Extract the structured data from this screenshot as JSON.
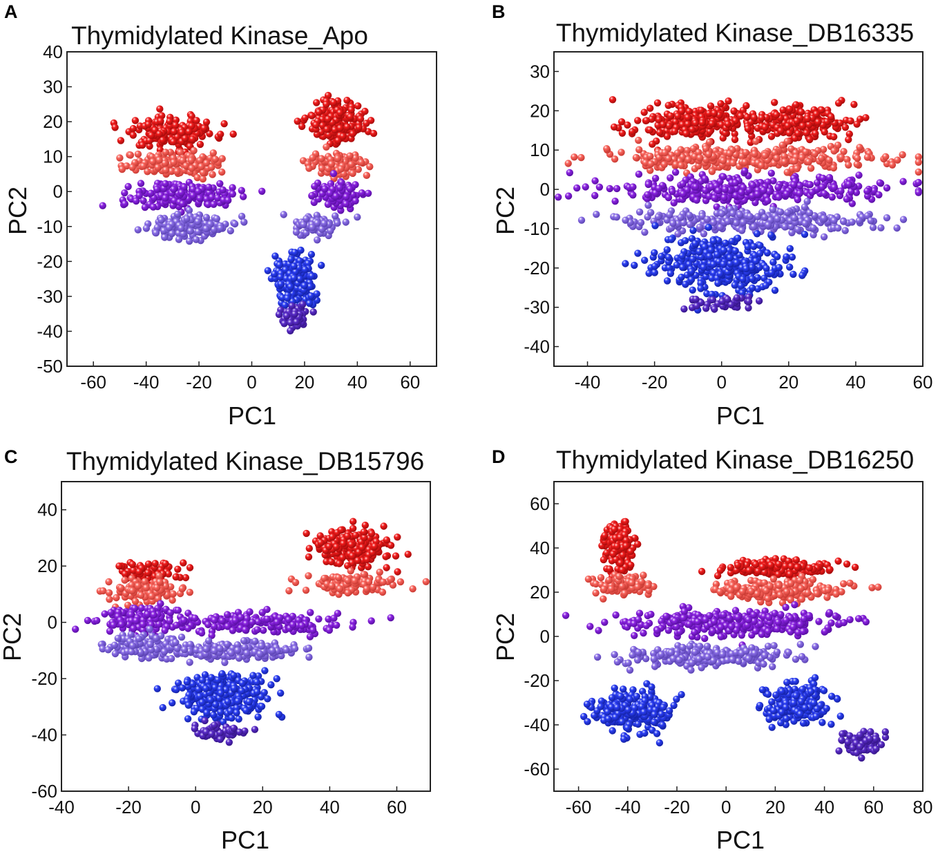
{
  "figure": {
    "panel_count": 4
  },
  "colors": {
    "red": "#f01c1c",
    "salmon": "#f8645c",
    "purple": "#8a23e0",
    "lavender": "#8a6ee6",
    "blue": "#2a3df2",
    "violet": "#5a2cc8"
  },
  "chart_data": [
    {
      "panel_label": "A",
      "type": "scatter",
      "title": "Thymidylated Kinase_Apo",
      "xlabel": "PC1",
      "ylabel": "PC2",
      "xlim": [
        -70,
        70
      ],
      "ylim": [
        -50,
        40
      ],
      "xticks": [
        -60,
        -40,
        -20,
        0,
        20,
        40,
        60
      ],
      "yticks": [
        40,
        30,
        20,
        10,
        0,
        -10,
        -20,
        -30,
        -40,
        -50
      ],
      "color_bands": [
        "red",
        "salmon",
        "purple",
        "lavender",
        "blue",
        "violet"
      ],
      "clusters": [
        {
          "name": "left-red",
          "color": "red",
          "x_center": -30,
          "y_center": 17,
          "x_spread": 16,
          "y_spread": 4,
          "n": 180
        },
        {
          "name": "left-salmon",
          "color": "salmon",
          "x_center": -29,
          "y_center": 8,
          "x_spread": 16,
          "y_spread": 3,
          "n": 160
        },
        {
          "name": "left-purple",
          "color": "purple",
          "x_center": -26,
          "y_center": -1,
          "x_spread": 17,
          "y_spread": 3,
          "n": 200
        },
        {
          "name": "left-lavender",
          "color": "lavender",
          "x_center": -24,
          "y_center": -10,
          "x_spread": 15,
          "y_spread": 3,
          "n": 150
        },
        {
          "name": "right-red",
          "color": "red",
          "x_center": 32,
          "y_center": 20,
          "x_spread": 9,
          "y_spread": 5,
          "n": 200
        },
        {
          "name": "right-salmon",
          "color": "salmon",
          "x_center": 33,
          "y_center": 8,
          "x_spread": 9,
          "y_spread": 3,
          "n": 110
        },
        {
          "name": "right-purple",
          "color": "purple",
          "x_center": 33,
          "y_center": -1,
          "x_spread": 8,
          "y_spread": 3,
          "n": 100
        },
        {
          "name": "center-lavender",
          "color": "lavender",
          "x_center": 25,
          "y_center": -10,
          "x_spread": 8,
          "y_spread": 3,
          "n": 90
        },
        {
          "name": "center-blue",
          "color": "blue",
          "x_center": 16,
          "y_center": -25,
          "x_spread": 6,
          "y_spread": 6,
          "n": 300
        },
        {
          "name": "center-violet",
          "color": "violet",
          "x_center": 16,
          "y_center": -36,
          "x_spread": 5,
          "y_spread": 3,
          "n": 60
        }
      ]
    },
    {
      "panel_label": "B",
      "type": "scatter",
      "title": "Thymidylated Kinase_DB16335",
      "xlabel": "PC1",
      "ylabel": "PC2",
      "xlim": [
        -50,
        60
      ],
      "ylim": [
        -45,
        35
      ],
      "xticks": [
        -40,
        -20,
        0,
        20,
        40,
        60
      ],
      "yticks": [
        30,
        20,
        10,
        0,
        -10,
        -20,
        -30,
        -40
      ],
      "color_bands": [
        "red",
        "salmon",
        "purple",
        "lavender",
        "blue",
        "violet"
      ],
      "clusters": [
        {
          "name": "red-left-lobe",
          "color": "red",
          "x_center": -8,
          "y_center": 17,
          "x_spread": 16,
          "y_spread": 4,
          "n": 260
        },
        {
          "name": "red-right-lobe",
          "color": "red",
          "x_center": 24,
          "y_center": 17,
          "x_spread": 12,
          "y_spread": 4,
          "n": 200
        },
        {
          "name": "salmon-band",
          "color": "salmon",
          "x_center": 6,
          "y_center": 8,
          "x_spread": 38,
          "y_spread": 2.5,
          "n": 320
        },
        {
          "name": "purple-band",
          "color": "purple",
          "x_center": 8,
          "y_center": 0,
          "x_spread": 36,
          "y_spread": 3,
          "n": 340
        },
        {
          "name": "lavender-band",
          "color": "lavender",
          "x_center": 10,
          "y_center": -8,
          "x_spread": 34,
          "y_spread": 2.5,
          "n": 280
        },
        {
          "name": "blue-body",
          "color": "blue",
          "x_center": 0,
          "y_center": -19,
          "x_spread": 17,
          "y_spread": 6,
          "n": 360
        },
        {
          "name": "violet-tail",
          "color": "violet",
          "x_center": 0,
          "y_center": -29,
          "x_spread": 12,
          "y_spread": 2,
          "n": 40
        }
      ]
    },
    {
      "panel_label": "C",
      "type": "scatter",
      "title": "Thymidylated Kinase_DB15796",
      "xlabel": "PC1",
      "ylabel": "PC2",
      "xlim": [
        -40,
        70
      ],
      "ylim": [
        -60,
        50
      ],
      "xticks": [
        -40,
        -20,
        0,
        20,
        40,
        60
      ],
      "yticks": [
        40,
        20,
        0,
        -20,
        -40,
        -60
      ],
      "color_bands": [
        "red",
        "salmon",
        "purple",
        "lavender",
        "blue",
        "violet"
      ],
      "clusters": [
        {
          "name": "left-red",
          "color": "red",
          "x_center": -14,
          "y_center": 18,
          "x_spread": 9,
          "y_spread": 3,
          "n": 80
        },
        {
          "name": "left-salmon",
          "color": "salmon",
          "x_center": -15,
          "y_center": 11,
          "x_spread": 10,
          "y_spread": 4,
          "n": 120
        },
        {
          "name": "left-purple",
          "color": "purple",
          "x_center": -16,
          "y_center": 1,
          "x_spread": 12,
          "y_spread": 4,
          "n": 150
        },
        {
          "name": "left-lavender",
          "color": "lavender",
          "x_center": -16,
          "y_center": -9,
          "x_spread": 11,
          "y_spread": 4,
          "n": 120
        },
        {
          "name": "right-red",
          "color": "red",
          "x_center": 48,
          "y_center": 26,
          "x_spread": 10,
          "y_spread": 6,
          "n": 220
        },
        {
          "name": "right-salmon",
          "color": "salmon",
          "x_center": 46,
          "y_center": 14,
          "x_spread": 11,
          "y_spread": 3,
          "n": 130
        },
        {
          "name": "center-purple",
          "color": "purple",
          "x_center": 20,
          "y_center": 0,
          "x_spread": 22,
          "y_spread": 3,
          "n": 180
        },
        {
          "name": "center-lavender",
          "color": "lavender",
          "x_center": 12,
          "y_center": -10,
          "x_spread": 18,
          "y_spread": 3,
          "n": 170
        },
        {
          "name": "center-blue",
          "color": "blue",
          "x_center": 9,
          "y_center": -26,
          "x_spread": 12,
          "y_spread": 7,
          "n": 320
        },
        {
          "name": "center-violet",
          "color": "violet",
          "x_center": 6,
          "y_center": -39,
          "x_spread": 7,
          "y_spread": 2.5,
          "n": 60
        }
      ]
    },
    {
      "panel_label": "D",
      "type": "scatter",
      "title": "Thymidylated Kinase_DB16250",
      "xlabel": "PC1",
      "ylabel": "PC2",
      "xlim": [
        -70,
        80
      ],
      "ylim": [
        -70,
        70
      ],
      "xticks": [
        -60,
        -40,
        -20,
        0,
        20,
        40,
        60,
        80
      ],
      "yticks": [
        60,
        40,
        20,
        0,
        -20,
        -40,
        -60
      ],
      "color_bands": [
        "red",
        "salmon",
        "purple",
        "lavender",
        "blue",
        "violet"
      ],
      "clusters": [
        {
          "name": "upper-left-red",
          "color": "red",
          "x_center": -44,
          "y_center": 40,
          "x_spread": 6,
          "y_spread": 9,
          "n": 160
        },
        {
          "name": "upper-left-salmon",
          "color": "salmon",
          "x_center": -40,
          "y_center": 24,
          "x_spread": 9,
          "y_spread": 4,
          "n": 110
        },
        {
          "name": "upper-right-red",
          "color": "red",
          "x_center": 22,
          "y_center": 31,
          "x_spread": 20,
          "y_spread": 3,
          "n": 170
        },
        {
          "name": "upper-right-salmon",
          "color": "salmon",
          "x_center": 18,
          "y_center": 21,
          "x_spread": 24,
          "y_spread": 4,
          "n": 220
        },
        {
          "name": "middle-purple",
          "color": "purple",
          "x_center": 2,
          "y_center": 6,
          "x_spread": 38,
          "y_spread": 5,
          "n": 340
        },
        {
          "name": "middle-lavender",
          "color": "lavender",
          "x_center": -8,
          "y_center": -9,
          "x_spread": 30,
          "y_spread": 4,
          "n": 220
        },
        {
          "name": "lower-left-blue",
          "color": "blue",
          "x_center": -38,
          "y_center": -34,
          "x_spread": 14,
          "y_spread": 8,
          "n": 260
        },
        {
          "name": "lower-right-blue",
          "color": "blue",
          "x_center": 30,
          "y_center": -30,
          "x_spread": 12,
          "y_spread": 8,
          "n": 260
        },
        {
          "name": "lower-right-violet",
          "color": "violet",
          "x_center": 54,
          "y_center": -48,
          "x_spread": 7,
          "y_spread": 5,
          "n": 70
        }
      ]
    }
  ]
}
